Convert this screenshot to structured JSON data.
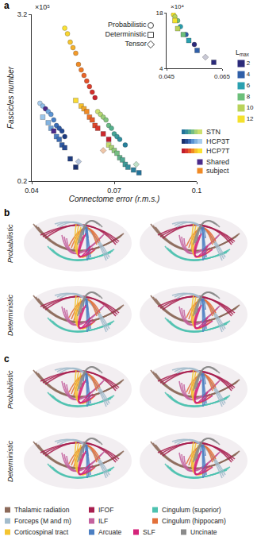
{
  "panel_labels": [
    "a",
    "b",
    "c"
  ],
  "chart_data": [
    {
      "type": "scatter",
      "xlabel": "Connectome error (r.m.s.)",
      "ylabel": "Fascicles number",
      "annotations": [
        "×10⁵"
      ],
      "xlim": [
        0.04,
        0.1
      ],
      "xticks": [
        0.04,
        0.07,
        0.1
      ],
      "ylim": [
        0.2,
        3.2
      ],
      "yticks": [
        0.2,
        3.2
      ],
      "grid": false,
      "series": [
        {
          "name": "HCP7T",
          "marker": "circle",
          "x": [
            0.052,
            0.053,
            0.054,
            0.055,
            0.056,
            0.057,
            0.058,
            0.059,
            0.06,
            0.061,
            0.062,
            0.063
          ],
          "values": [
            2.95,
            2.85,
            2.7,
            2.6,
            2.5,
            2.3,
            2.2,
            2.1,
            2.0,
            1.9,
            1.8,
            1.7
          ],
          "colors": [
            "#fbe232",
            "#f9d52f",
            "#f7c52d",
            "#f5b02b",
            "#f39a2a",
            "#f08a24",
            "#ee7a27",
            "#e96428",
            "#e4502a",
            "#de3e2b",
            "#d42f2c",
            "#c8222d"
          ]
        },
        {
          "name": "HCP7T",
          "marker": "square",
          "x": [
            0.056,
            0.058,
            0.059,
            0.06,
            0.061,
            0.062,
            0.063,
            0.064,
            0.066,
            0.068
          ],
          "values": [
            1.65,
            1.55,
            1.5,
            1.45,
            1.35,
            1.3,
            1.2,
            1.15,
            1.05,
            0.95
          ],
          "colors": [
            "#fadb30",
            "#f6c02c",
            "#f3a82b",
            "#f08a24",
            "#ec7228",
            "#e65c29",
            "#e0482a",
            "#d8362b",
            "#cd282c",
            "#c01c2d"
          ]
        },
        {
          "name": "HCP3T",
          "marker": "circle",
          "x": [
            0.043,
            0.044,
            0.045,
            0.046,
            0.047,
            0.048,
            0.049,
            0.05,
            0.051,
            0.052
          ],
          "values": [
            1.6,
            1.55,
            1.5,
            1.45,
            1.4,
            1.3,
            1.2,
            1.15,
            1.1,
            1.0
          ],
          "colors": [
            "#a8cdee",
            "#8fbde6",
            "#4b2a8a",
            "#6fa5dc",
            "#5a93d2",
            "#4880c6",
            "#386cb8",
            "#2d5aa6",
            "#244a94",
            "#1c3a80"
          ]
        },
        {
          "name": "HCP3T",
          "marker": "square",
          "x": [
            0.044,
            0.046,
            0.047,
            0.048,
            0.049,
            0.05,
            0.051,
            0.052,
            0.054,
            0.056
          ],
          "values": [
            1.35,
            1.25,
            1.15,
            1.1,
            1.0,
            0.95,
            0.85,
            0.8,
            0.6,
            0.45
          ],
          "colors": [
            "#9cc6ea",
            "#82b3e0",
            "#6ba0d6",
            "#4b2a8a",
            "#4a7ec4",
            "#3b6bb4",
            "#2f5aa3",
            "#264a92",
            "#1f3c80",
            "#1a2f6c"
          ]
        },
        {
          "name": "STN",
          "marker": "circle",
          "x": [
            0.064,
            0.065,
            0.066,
            0.067,
            0.068,
            0.069,
            0.07,
            0.071,
            0.072,
            0.074
          ],
          "values": [
            1.45,
            1.4,
            1.35,
            1.3,
            1.2,
            1.15,
            1.05,
            1.0,
            0.95,
            0.85
          ],
          "colors": [
            "#cde06e",
            "#b6d872",
            "#9ccf78",
            "#82c57e",
            "#6abb86",
            "#55b08e",
            "#45a596",
            "#389a9c",
            "#2e8e9e",
            "#26819c"
          ]
        },
        {
          "name": "STN",
          "marker": "square",
          "x": [
            0.068,
            0.069,
            0.07,
            0.071,
            0.072,
            0.073,
            0.074,
            0.075,
            0.077,
            0.079
          ],
          "values": [
            0.85,
            0.8,
            0.75,
            0.7,
            0.62,
            0.58,
            0.5,
            0.45,
            0.4,
            0.35
          ],
          "colors": [
            "#c2db70",
            "#a8d275",
            "#8fc97c",
            "#76be83",
            "#62b38a",
            "#50a792",
            "#419b98",
            "#358e9c",
            "#2b809c",
            "#23729a"
          ]
        },
        {
          "name": "Tensor",
          "marker": "diamond",
          "x": [
            0.057,
            0.066,
            0.078
          ],
          "values": [
            0.55,
            0.75,
            0.5
          ],
          "colors": [
            "#b7c6de",
            "#efc6a8",
            "#bfe0c8"
          ]
        }
      ]
    },
    {
      "type": "scatter",
      "annotations": [
        "×10⁴"
      ],
      "xlim": [
        0.045,
        0.065
      ],
      "xticks": [
        0.045,
        0.065
      ],
      "ylim": [
        4,
        18
      ],
      "yticks": [
        4,
        18
      ],
      "grid": false,
      "series": [
        {
          "marker": "circle",
          "x": [
            0.0475,
            0.048,
            0.049,
            0.05,
            0.052,
            0.055
          ],
          "values": [
            17.5,
            17.0,
            16.0,
            14.5,
            12.5,
            10.0
          ],
          "colors": [
            "#f4e12c",
            "#b9d35a",
            "#6cbf7a",
            "#2aa0b0",
            "#2f5fa8",
            "#2b2a7a"
          ]
        },
        {
          "marker": "square",
          "x": [
            0.048,
            0.049,
            0.051,
            0.053,
            0.056,
            0.062
          ],
          "values": [
            16.0,
            14.0,
            12.5,
            11.0,
            8.5,
            5.5
          ],
          "colors": [
            "#f4e12c",
            "#b9d35a",
            "#6cbf7a",
            "#2aa0b0",
            "#2f5fa8",
            "#2b2a7a"
          ]
        },
        {
          "marker": "diamond",
          "x": [
            0.059
          ],
          "values": [
            6.8
          ],
          "colors": [
            "#c9c9d6"
          ]
        }
      ]
    }
  ],
  "marker_legend": [
    {
      "label": "Probabilistic",
      "marker": "circle"
    },
    {
      "label": "Deterministic",
      "marker": "square"
    },
    {
      "label": "Tensor",
      "marker": "diamond"
    }
  ],
  "lmax_legend": {
    "title": "Lmax",
    "levels": [
      {
        "value": 2,
        "color": "#2b2a7a"
      },
      {
        "value": 4,
        "color": "#2f5fa8"
      },
      {
        "value": 6,
        "color": "#2aa0b0"
      },
      {
        "value": 8,
        "color": "#6cbf7a"
      },
      {
        "value": 10,
        "color": "#b9d35a"
      },
      {
        "value": 12,
        "color": "#f4e12c"
      }
    ]
  },
  "dataset_legend": [
    {
      "label": "STN",
      "colors": [
        "#23729a",
        "#358e9c",
        "#50a792",
        "#76be83",
        "#a8d275",
        "#cde06e"
      ]
    },
    {
      "label": "HCP3T",
      "colors": [
        "#1a2f6c",
        "#264a92",
        "#3b6bb4",
        "#5a93d2",
        "#82b3e0",
        "#a8cdee"
      ]
    },
    {
      "label": "HCP7T",
      "colors": [
        "#c01c2d",
        "#d8362b",
        "#e65c29",
        "#f08a24",
        "#f6c02c",
        "#fbe232"
      ]
    }
  ],
  "shared_legend": [
    {
      "label": "Shared",
      "color": "#4b2a8a"
    },
    {
      "label": "subject",
      "color": "#f08a24"
    }
  ],
  "panels": [
    {
      "label": "b",
      "rows": [
        "Probabilistic",
        "Deterministic"
      ]
    },
    {
      "label": "c",
      "rows": [
        "Probabilistic",
        "Deterministic"
      ]
    }
  ],
  "tract_legend": [
    [
      {
        "label": "Thalamic radiation",
        "color": "#8c6a5a"
      },
      {
        "label": "IFOF",
        "color": "#a81f4f"
      },
      {
        "label": "Cingulum (superior)",
        "color": "#4dc2b0"
      }
    ],
    [
      {
        "label": "Forceps (M and m)",
        "color": "#a3bccc"
      },
      {
        "label": "ILF",
        "color": "#c4619e"
      },
      {
        "label": "Cingulum (hippocam)",
        "color": "#e2703a"
      }
    ],
    [
      {
        "label": "Corticospinal tract",
        "color": "#f4c430"
      },
      {
        "label": "Arcuate",
        "color": "#4c7fc2"
      },
      {
        "label": "SLF",
        "color": "#d4237a"
      },
      {
        "label": "Uncinate",
        "color": "#8a8a8a"
      }
    ]
  ]
}
